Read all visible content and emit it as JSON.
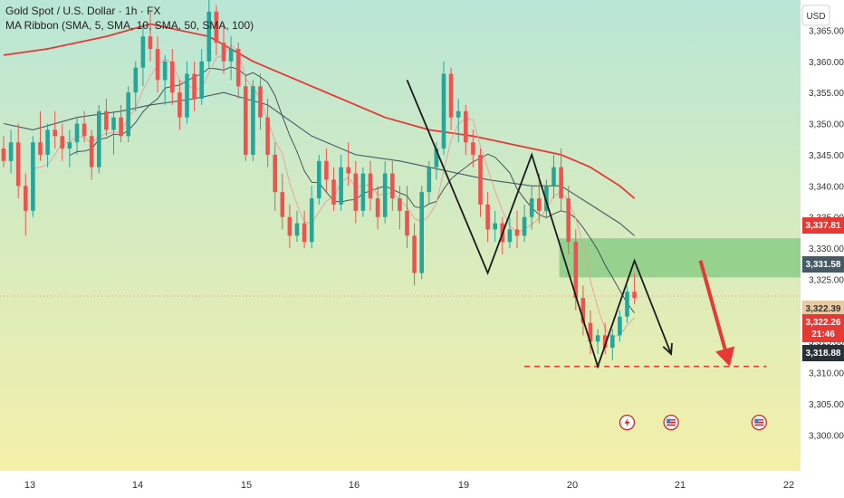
{
  "header": {
    "symbol_line": "Gold Spot / U.S. Dollar · 1h · FX",
    "indicator_line": "MA Ribbon (SMA, 5, SMA, 10, SMA, 50, SMA, 100)"
  },
  "currency": "USD",
  "price_labels": {
    "red": "3,337.81",
    "grey_top": "3,331.58",
    "tan": "3,322.39",
    "red_current": "3,322.26",
    "countdown": "21:46",
    "dark": "3,318.88"
  },
  "colors": {
    "bull": "#26a69a",
    "bear": "#ef5350",
    "ma100": "#e53935",
    "ma50": "#455a64",
    "zone": "#7fc97f",
    "arrow": "#e53935",
    "bg_top": "#b9e6d6",
    "bg_bottom": "#f4f0a8"
  },
  "chart_data": {
    "type": "candlestick",
    "ylim": [
      3298,
      3373
    ],
    "yticks": [
      "3,300.00",
      "3,305.00",
      "3,310.00",
      "3,315.00",
      "3,320.00",
      "3,325.00",
      "3,330.00",
      "3,335.00",
      "3,340.00",
      "3,345.00",
      "3,350.00",
      "3,355.00",
      "3,360.00",
      "3,365.00"
    ],
    "xticks": [
      "13",
      "14",
      "15",
      "16",
      "19",
      "20",
      "21",
      "22"
    ],
    "candles": [
      [
        3346,
        3348,
        3343,
        3344
      ],
      [
        3344,
        3349,
        3342,
        3347
      ],
      [
        3347,
        3350,
        3338,
        3340
      ],
      [
        3340,
        3342,
        3332,
        3336
      ],
      [
        3336,
        3348,
        3335,
        3347
      ],
      [
        3347,
        3352,
        3344,
        3345
      ],
      [
        3345,
        3350,
        3343,
        3349
      ],
      [
        3349,
        3352,
        3346,
        3348
      ],
      [
        3348,
        3350,
        3344,
        3346
      ],
      [
        3346,
        3349,
        3343,
        3347
      ],
      [
        3347,
        3351,
        3345,
        3350
      ],
      [
        3350,
        3352,
        3347,
        3348
      ],
      [
        3348,
        3349,
        3341,
        3343
      ],
      [
        3343,
        3353,
        3342,
        3352
      ],
      [
        3352,
        3354,
        3348,
        3349
      ],
      [
        3349,
        3352,
        3345,
        3351
      ],
      [
        3351,
        3353,
        3347,
        3348
      ],
      [
        3348,
        3356,
        3347,
        3355
      ],
      [
        3355,
        3360,
        3352,
        3359
      ],
      [
        3359,
        3366,
        3356,
        3364
      ],
      [
        3364,
        3368,
        3360,
        3362
      ],
      [
        3362,
        3364,
        3355,
        3357
      ],
      [
        3357,
        3361,
        3353,
        3360
      ],
      [
        3360,
        3362,
        3353,
        3355
      ],
      [
        3355,
        3357,
        3349,
        3351
      ],
      [
        3351,
        3360,
        3350,
        3358
      ],
      [
        3358,
        3360,
        3352,
        3354
      ],
      [
        3354,
        3362,
        3353,
        3360
      ],
      [
        3360,
        3373,
        3359,
        3368
      ],
      [
        3368,
        3369,
        3361,
        3363
      ],
      [
        3363,
        3366,
        3358,
        3360
      ],
      [
        3360,
        3364,
        3357,
        3362
      ],
      [
        3362,
        3363,
        3354,
        3356
      ],
      [
        3356,
        3358,
        3344,
        3345
      ],
      [
        3345,
        3357,
        3344,
        3356
      ],
      [
        3356,
        3358,
        3349,
        3351
      ],
      [
        3351,
        3354,
        3343,
        3345
      ],
      [
        3345,
        3347,
        3336,
        3339
      ],
      [
        3339,
        3342,
        3333,
        3335
      ],
      [
        3335,
        3337,
        3330,
        3332
      ],
      [
        3332,
        3336,
        3331,
        3334
      ],
      [
        3334,
        3336,
        3330,
        3331
      ],
      [
        3331,
        3340,
        3330,
        3338
      ],
      [
        3338,
        3345,
        3337,
        3344
      ],
      [
        3344,
        3346,
        3339,
        3341
      ],
      [
        3341,
        3343,
        3336,
        3337
      ],
      [
        3337,
        3345,
        3336,
        3343
      ],
      [
        3343,
        3347,
        3340,
        3342
      ],
      [
        3342,
        3344,
        3334,
        3336
      ],
      [
        3336,
        3343,
        3335,
        3342
      ],
      [
        3342,
        3344,
        3336,
        3338
      ],
      [
        3338,
        3340,
        3333,
        3335
      ],
      [
        3335,
        3344,
        3334,
        3342
      ],
      [
        3342,
        3344,
        3336,
        3338
      ],
      [
        3338,
        3340,
        3333,
        3336
      ],
      [
        3336,
        3340,
        3330,
        3332
      ],
      [
        3332,
        3334,
        3324,
        3326
      ],
      [
        3326,
        3340,
        3325,
        3339
      ],
      [
        3339,
        3344,
        3337,
        3343
      ],
      [
        3343,
        3347,
        3341,
        3346
      ],
      [
        3346,
        3360,
        3345,
        3358
      ],
      [
        3358,
        3359,
        3349,
        3351
      ],
      [
        3351,
        3354,
        3347,
        3352
      ],
      [
        3352,
        3353,
        3345,
        3347
      ],
      [
        3347,
        3349,
        3343,
        3345
      ],
      [
        3345,
        3346,
        3335,
        3337
      ],
      [
        3337,
        3339,
        3331,
        3333
      ],
      [
        3333,
        3336,
        3331,
        3334
      ],
      [
        3334,
        3335,
        3329,
        3331
      ],
      [
        3331,
        3335,
        3330,
        3333
      ],
      [
        3333,
        3336,
        3330,
        3332
      ],
      [
        3332,
        3337,
        3331,
        3335
      ],
      [
        3335,
        3340,
        3333,
        3338
      ],
      [
        3338,
        3342,
        3334,
        3336
      ],
      [
        3336,
        3341,
        3335,
        3340
      ],
      [
        3340,
        3345,
        3338,
        3343
      ],
      [
        3343,
        3346,
        3336,
        3338
      ],
      [
        3338,
        3340,
        3329,
        3331
      ],
      [
        3331,
        3333,
        3320,
        3322
      ],
      [
        3322,
        3324,
        3316,
        3318
      ],
      [
        3318,
        3320,
        3313,
        3315
      ],
      [
        3315,
        3317,
        3313,
        3316
      ],
      [
        3316,
        3318,
        3313,
        3314
      ],
      [
        3314,
        3317,
        3312,
        3316
      ],
      [
        3316,
        3320,
        3315,
        3319
      ],
      [
        3319,
        3324,
        3318,
        3323
      ],
      [
        3323,
        3326,
        3321,
        3322
      ]
    ],
    "ma100": [
      [
        0,
        3361
      ],
      [
        6,
        3362
      ],
      [
        14,
        3364
      ],
      [
        20,
        3366
      ],
      [
        28,
        3364
      ],
      [
        34,
        3360
      ],
      [
        40,
        3357
      ],
      [
        46,
        3354
      ],
      [
        52,
        3351
      ],
      [
        58,
        3349
      ],
      [
        64,
        3348
      ],
      [
        70,
        3346.5
      ],
      [
        76,
        3345
      ],
      [
        80,
        3343
      ],
      [
        84,
        3340
      ],
      [
        86,
        3338
      ]
    ],
    "ma50": [
      [
        0,
        3350
      ],
      [
        4,
        3349
      ],
      [
        10,
        3351
      ],
      [
        16,
        3352
      ],
      [
        20,
        3353
      ],
      [
        26,
        3354
      ],
      [
        30,
        3355
      ],
      [
        36,
        3353
      ],
      [
        42,
        3348
      ],
      [
        48,
        3345
      ],
      [
        54,
        3344
      ],
      [
        60,
        3342.5
      ],
      [
        66,
        3341
      ],
      [
        72,
        3340
      ],
      [
        76,
        3340
      ],
      [
        80,
        3337
      ],
      [
        84,
        3334
      ],
      [
        86,
        3332
      ]
    ],
    "zone": {
      "x_start": 76,
      "x_end": 104,
      "top": 3331.58,
      "bottom": 3325.3
    },
    "support_line": {
      "y": 3311,
      "x_start": 71,
      "x_end": 104
    },
    "pattern_path": [
      [
        55,
        3357
      ],
      [
        66,
        3326
      ],
      [
        72,
        3345
      ],
      [
        81,
        3311
      ],
      [
        86,
        3328
      ],
      [
        91,
        3313
      ]
    ],
    "forecast_arrow": {
      "from": [
        95,
        3328
      ],
      "to": [
        99,
        3311
      ]
    },
    "event_markers": [
      {
        "x": 85,
        "y": 3302,
        "type": "flash"
      },
      {
        "x": 91,
        "y": 3302,
        "type": "flag"
      },
      {
        "x": 103,
        "y": 3302,
        "type": "flag"
      }
    ]
  }
}
